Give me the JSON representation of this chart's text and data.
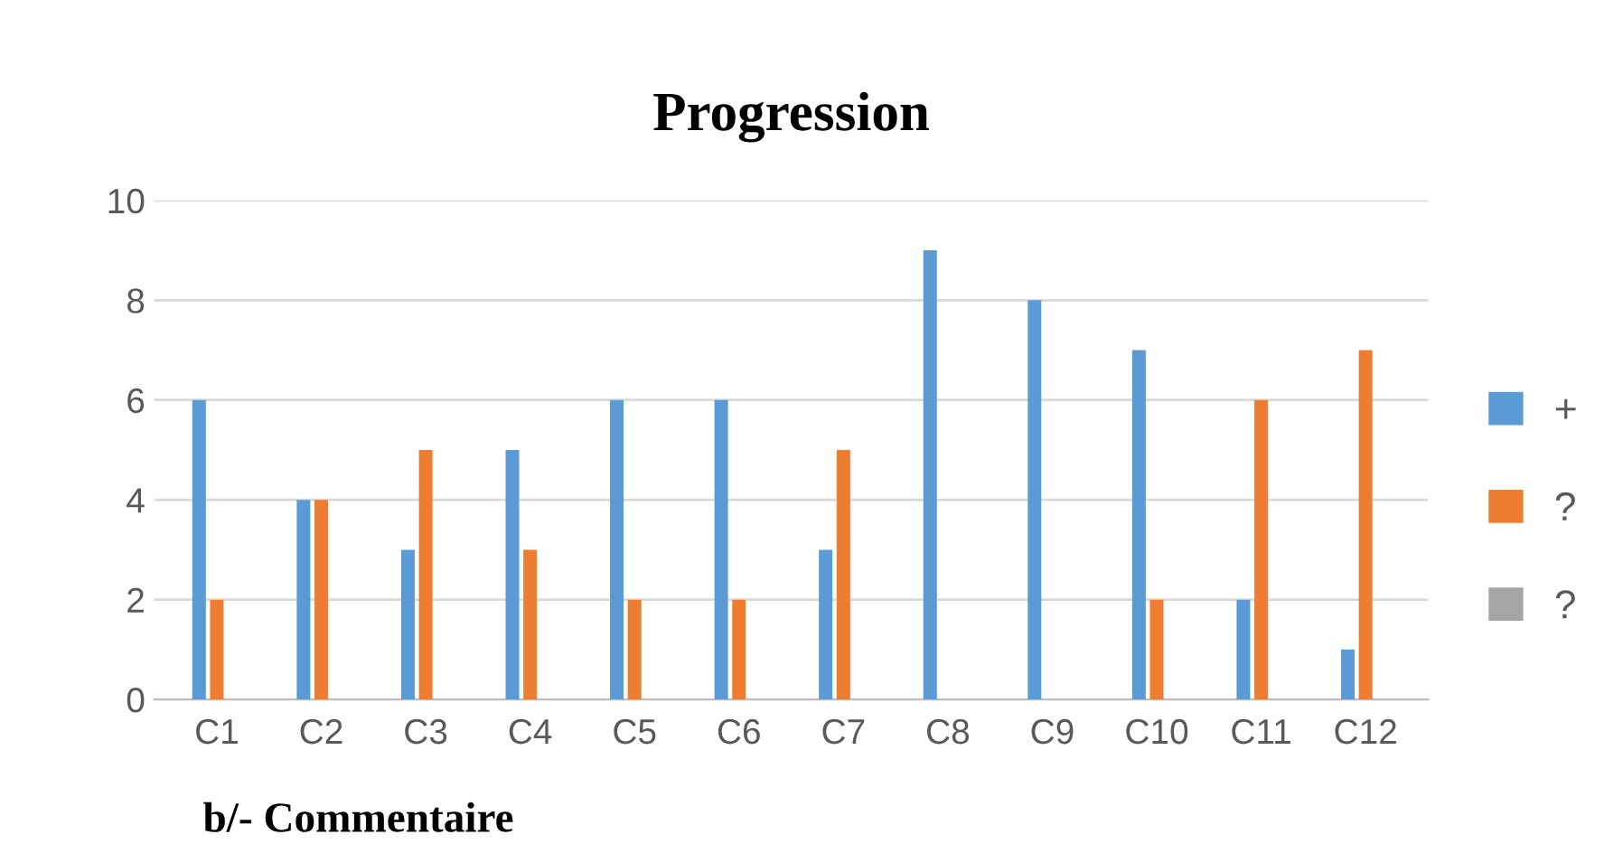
{
  "chart_data": {
    "type": "bar",
    "title": "Progression",
    "categories": [
      "C1",
      "C2",
      "C3",
      "C4",
      "C5",
      "C6",
      "C7",
      "C8",
      "C9",
      "C10",
      "C11",
      "C12"
    ],
    "series": [
      {
        "name": "+",
        "color": "#5b9bd5",
        "values": [
          6,
          4,
          3,
          5,
          6,
          6,
          3,
          9,
          8,
          7,
          2,
          1
        ]
      },
      {
        "name": "?",
        "color": "#ed7d31",
        "values": [
          2,
          4,
          5,
          3,
          2,
          2,
          5,
          0,
          0,
          2,
          6,
          7
        ]
      },
      {
        "name": "?",
        "color": "#a5a5a5",
        "values": [
          0,
          0,
          0,
          0,
          0,
          0,
          0,
          0,
          0,
          0,
          0,
          0
        ]
      }
    ],
    "ylim": [
      0,
      10
    ],
    "yticks": [
      0,
      2,
      4,
      6,
      8,
      10
    ],
    "grid": "y",
    "legend": "right",
    "annotations": [
      "b/- Commentaire"
    ]
  }
}
